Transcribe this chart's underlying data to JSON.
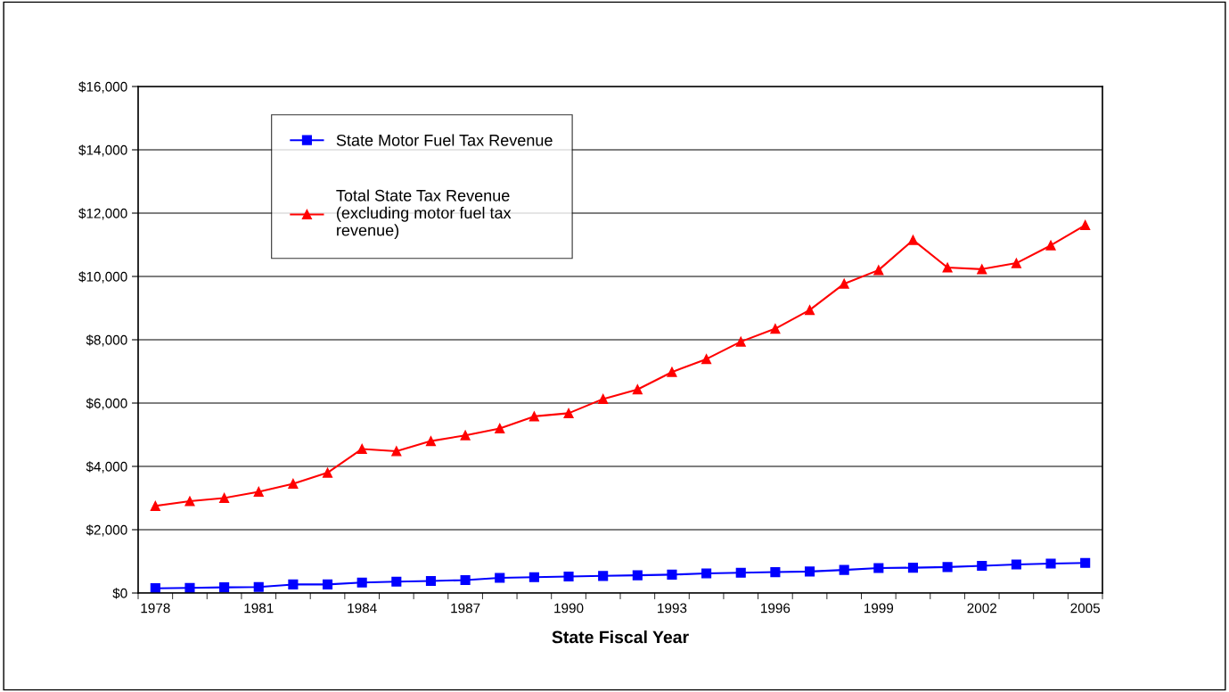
{
  "chart_data": {
    "type": "line",
    "xlabel": "State Fiscal Year",
    "categories": [
      "1978",
      null,
      null,
      "1981",
      null,
      null,
      "1984",
      null,
      null,
      "1987",
      null,
      null,
      "1990",
      null,
      null,
      "1993",
      null,
      null,
      "1996",
      null,
      null,
      "1999",
      null,
      null,
      "2002",
      null,
      null,
      "2005"
    ],
    "series": [
      {
        "name": "State Motor Fuel Tax Revenue",
        "color": "#0000ff",
        "marker": "square",
        "values": [
          150,
          160,
          180,
          190,
          270,
          270,
          330,
          360,
          380,
          410,
          480,
          500,
          520,
          540,
          560,
          580,
          620,
          640,
          660,
          680,
          730,
          790,
          800,
          820,
          860,
          900,
          930,
          950
        ]
      },
      {
        "name": "Total State Tax Revenue\n(excluding motor fuel tax\nrevenue)",
        "color": "#ff0000",
        "marker": "triangle",
        "values": [
          2750,
          2900,
          3000,
          3200,
          3450,
          3800,
          4550,
          4480,
          4800,
          4980,
          5200,
          5580,
          5680,
          6130,
          6430,
          6980,
          7390,
          7940,
          8350,
          8940,
          9770,
          10200,
          11150,
          10280,
          10230,
          10420,
          10980,
          11620
        ]
      }
    ],
    "ylim": [
      0,
      16000
    ],
    "yticks": [
      {
        "value": 0,
        "label": "$0"
      },
      {
        "value": 2000,
        "label": "$2,000"
      },
      {
        "value": 4000,
        "label": "$4,000"
      },
      {
        "value": 6000,
        "label": "$6,000"
      },
      {
        "value": 8000,
        "label": "$8,000"
      },
      {
        "value": 10000,
        "label": "$10,000"
      },
      {
        "value": 12000,
        "label": "$12,000"
      },
      {
        "value": 14000,
        "label": "$14,000"
      },
      {
        "value": 16000,
        "label": "$16,000"
      }
    ],
    "grid": "y",
    "legend": "top left"
  }
}
